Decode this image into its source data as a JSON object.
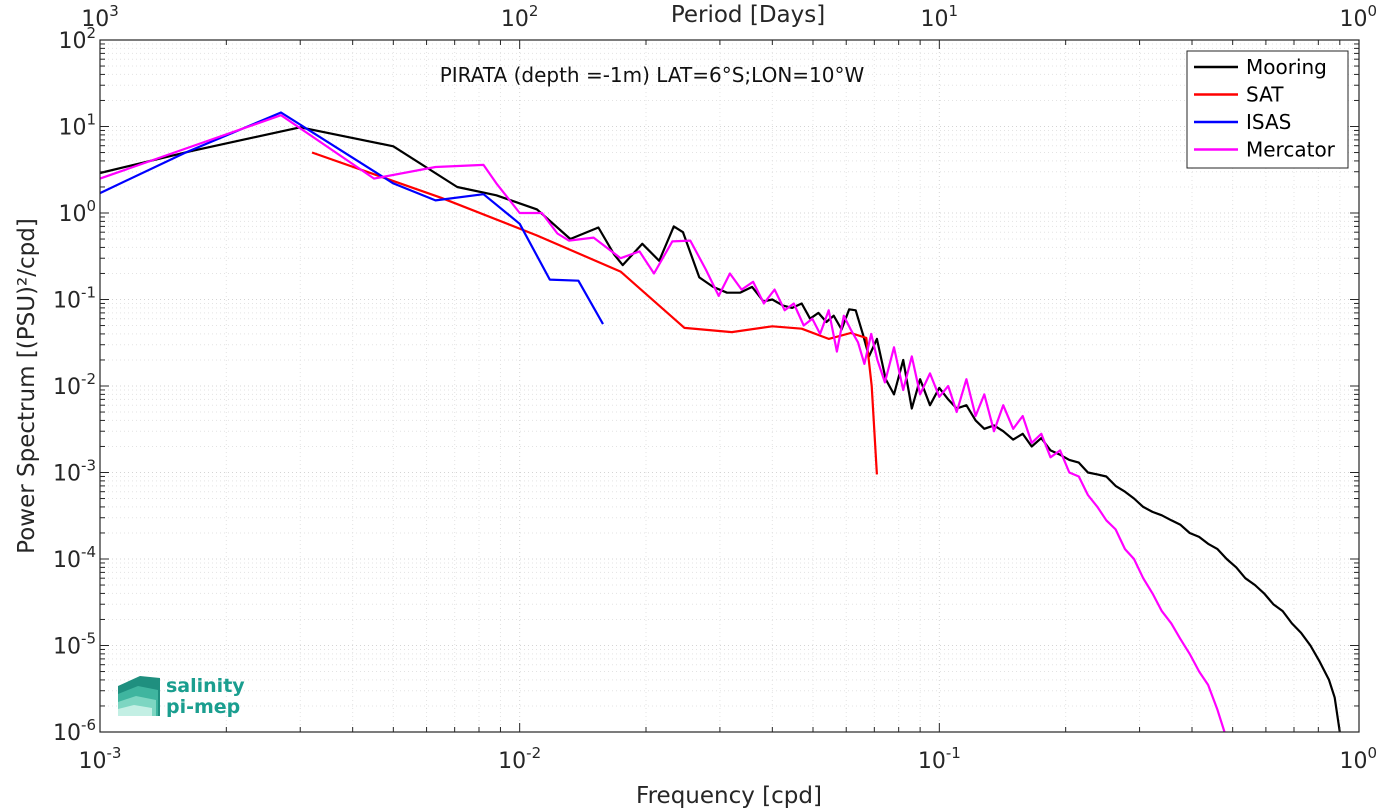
{
  "chart_data": {
    "type": "line",
    "title": "PIRATA (depth =-1m) LAT=6°S;LON=10°W",
    "xlabel": "Frequency [cpd]",
    "ylabel": "Power Spectrum [(PSU)²/cpd]",
    "top_xlabel": "Period [Days]",
    "x_scale": "log",
    "y_scale": "log",
    "xlim": [
      0.001,
      1
    ],
    "ylim": [
      1e-06,
      100
    ],
    "grid": true,
    "legend_position": "top-right",
    "x_ticks": [
      {
        "base": "10",
        "exp": "-3",
        "value": 0.001
      },
      {
        "base": "10",
        "exp": "-2",
        "value": 0.01
      },
      {
        "base": "10",
        "exp": "-1",
        "value": 0.1
      },
      {
        "base": "10",
        "exp": "0",
        "value": 1
      }
    ],
    "top_ticks": [
      {
        "base": "10",
        "exp": "3",
        "freq": 0.001
      },
      {
        "base": "10",
        "exp": "2",
        "freq": 0.01
      },
      {
        "base": "10",
        "exp": "1",
        "freq": 0.1
      },
      {
        "base": "10",
        "exp": "0",
        "freq": 1
      }
    ],
    "y_ticks": [
      {
        "base": "10",
        "exp": "2",
        "value": 100
      },
      {
        "base": "10",
        "exp": "1",
        "value": 10
      },
      {
        "base": "10",
        "exp": "0",
        "value": 1
      },
      {
        "base": "10",
        "exp": "-1",
        "value": 0.1
      },
      {
        "base": "10",
        "exp": "-2",
        "value": 0.01
      },
      {
        "base": "10",
        "exp": "-3",
        "value": 0.001
      },
      {
        "base": "10",
        "exp": "-4",
        "value": 0.0001
      },
      {
        "base": "10",
        "exp": "-5",
        "value": 1e-05
      },
      {
        "base": "10",
        "exp": "-6",
        "value": 1e-06
      }
    ],
    "series": [
      {
        "name": "Mooring",
        "color": "#000000",
        "x": [
          0.001,
          0.00165,
          0.003,
          0.005,
          0.0071,
          0.0088,
          0.011,
          0.0132,
          0.0154,
          0.0168,
          0.0176,
          0.0196,
          0.0215,
          0.0233,
          0.0245,
          0.0268,
          0.0289,
          0.0312,
          0.0335,
          0.0358,
          0.0381,
          0.04,
          0.0424,
          0.0446,
          0.047,
          0.0492,
          0.0515,
          0.0538,
          0.056,
          0.0585,
          0.061,
          0.0632,
          0.0657,
          0.068,
          0.071,
          0.0745,
          0.078,
          0.082,
          0.086,
          0.09,
          0.095,
          0.1,
          0.105,
          0.11,
          0.116,
          0.122,
          0.128,
          0.135,
          0.142,
          0.15,
          0.158,
          0.166,
          0.175,
          0.184,
          0.194,
          0.204,
          0.215,
          0.226,
          0.238,
          0.25,
          0.263,
          0.277,
          0.291,
          0.306,
          0.322,
          0.339,
          0.357,
          0.375,
          0.395,
          0.416,
          0.437,
          0.46,
          0.484,
          0.51,
          0.536,
          0.565,
          0.594,
          0.625,
          0.658,
          0.692,
          0.728,
          0.766,
          0.806,
          0.848,
          0.875,
          0.9
        ],
        "y": [
          2.9,
          5.2,
          9.8,
          5.9,
          2.0,
          1.6,
          1.1,
          0.5,
          0.68,
          0.33,
          0.25,
          0.44,
          0.28,
          0.7,
          0.6,
          0.18,
          0.14,
          0.12,
          0.12,
          0.14,
          0.095,
          0.1,
          0.085,
          0.08,
          0.09,
          0.06,
          0.07,
          0.055,
          0.065,
          0.045,
          0.077,
          0.075,
          0.04,
          0.022,
          0.035,
          0.012,
          0.008,
          0.02,
          0.0055,
          0.012,
          0.006,
          0.0095,
          0.007,
          0.0055,
          0.006,
          0.004,
          0.0032,
          0.0035,
          0.003,
          0.0024,
          0.0028,
          0.002,
          0.0025,
          0.0018,
          0.0016,
          0.0014,
          0.0013,
          0.001,
          0.00095,
          0.0009,
          0.0007,
          0.0006,
          0.0005,
          0.0004,
          0.00035,
          0.00032,
          0.00028,
          0.00025,
          0.0002,
          0.00018,
          0.00015,
          0.00013,
          0.0001,
          8e-05,
          6e-05,
          5e-05,
          4e-05,
          3e-05,
          2.5e-05,
          1.8e-05,
          1.4e-05,
          1e-05,
          6.5e-06,
          4e-06,
          2.5e-06,
          1e-06
        ]
      },
      {
        "name": "SAT",
        "color": "#ff0000",
        "x": [
          0.0032,
          0.0065,
          0.011,
          0.0174,
          0.0247,
          0.032,
          0.04,
          0.047,
          0.0545,
          0.0615,
          0.067,
          0.069,
          0.071
        ],
        "y": [
          5.0,
          1.5,
          0.55,
          0.21,
          0.047,
          0.042,
          0.049,
          0.046,
          0.035,
          0.041,
          0.036,
          0.01,
          0.00095
        ]
      },
      {
        "name": "ISAS",
        "color": "#0000ff",
        "x": [
          0.001,
          0.0016,
          0.0027,
          0.005,
          0.0063,
          0.0082,
          0.01,
          0.0118,
          0.0138,
          0.0158
        ],
        "y": [
          1.7,
          5.0,
          14.5,
          2.2,
          1.4,
          1.65,
          0.75,
          0.17,
          0.165,
          0.052
        ]
      },
      {
        "name": "Mercator",
        "color": "#ff00ff",
        "x": [
          0.001,
          0.0027,
          0.0045,
          0.0063,
          0.0082,
          0.0088,
          0.01,
          0.0113,
          0.0123,
          0.0131,
          0.015,
          0.0174,
          0.0193,
          0.0209,
          0.0231,
          0.0255,
          0.0278,
          0.0298,
          0.0317,
          0.0338,
          0.036,
          0.0382,
          0.0405,
          0.0428,
          0.045,
          0.0475,
          0.0498,
          0.052,
          0.0545,
          0.057,
          0.0592,
          0.0615,
          0.064,
          0.0663,
          0.0688,
          0.0712,
          0.0742,
          0.078,
          0.082,
          0.086,
          0.09,
          0.095,
          0.1,
          0.105,
          0.11,
          0.116,
          0.122,
          0.128,
          0.135,
          0.142,
          0.15,
          0.158,
          0.166,
          0.175,
          0.184,
          0.194,
          0.204,
          0.215,
          0.226,
          0.238,
          0.25,
          0.263,
          0.277,
          0.291,
          0.306,
          0.322,
          0.339,
          0.357,
          0.375,
          0.395,
          0.416,
          0.437,
          0.46,
          0.478
        ],
        "y": [
          2.5,
          13.5,
          2.5,
          3.4,
          3.6,
          2.2,
          1.0,
          1.0,
          0.58,
          0.48,
          0.52,
          0.3,
          0.36,
          0.2,
          0.47,
          0.48,
          0.22,
          0.11,
          0.2,
          0.13,
          0.16,
          0.09,
          0.13,
          0.075,
          0.09,
          0.05,
          0.06,
          0.04,
          0.075,
          0.025,
          0.065,
          0.045,
          0.032,
          0.018,
          0.04,
          0.02,
          0.011,
          0.028,
          0.009,
          0.022,
          0.008,
          0.014,
          0.0075,
          0.01,
          0.005,
          0.012,
          0.0045,
          0.008,
          0.003,
          0.006,
          0.0032,
          0.0045,
          0.0022,
          0.0028,
          0.0015,
          0.0018,
          0.001,
          0.0009,
          0.00055,
          0.0004,
          0.00028,
          0.00022,
          0.00013,
          0.0001,
          6e-05,
          4e-05,
          2.5e-05,
          1.8e-05,
          1.2e-05,
          8e-06,
          5e-06,
          3.5e-06,
          1.8e-06,
          1e-06
        ]
      }
    ]
  },
  "logo": {
    "line1": "salinity",
    "line2": "pi-mep"
  }
}
